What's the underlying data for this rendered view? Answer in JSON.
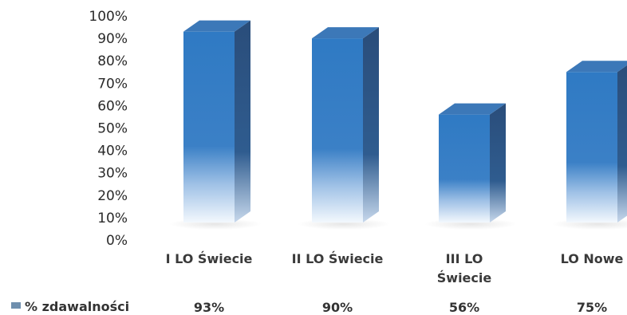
{
  "chart_data": {
    "type": "bar",
    "categories": [
      [
        "I LO Świecie"
      ],
      [
        "II LO Świecie"
      ],
      [
        "III LO",
        "Świecie"
      ],
      [
        "LO Nowe"
      ]
    ],
    "series": [
      {
        "name": "% zdawalności",
        "values": [
          93,
          90,
          56,
          75
        ],
        "labels": [
          "93%",
          "90%",
          "56%",
          "75%"
        ]
      }
    ],
    "y_ticks": [
      "0%",
      "10%",
      "20%",
      "30%",
      "40%",
      "50%",
      "60%",
      "70%",
      "80%",
      "90%",
      "100%"
    ],
    "ylim": [
      0,
      100
    ],
    "legend_position": "bottom-left",
    "colors": {
      "bar_top": "#2f78c2",
      "bar_bottom": "#eef5fd",
      "bar_side": "#2a4f7c",
      "bar_cap": "#3c78b8",
      "legend_swatch": "#6f8fae"
    }
  }
}
